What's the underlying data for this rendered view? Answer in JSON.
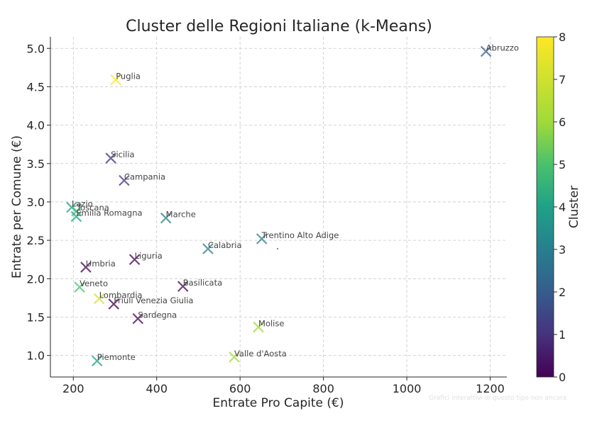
{
  "watermark_text": "Grafici interattivi di questo tipo non ancora",
  "chart_data": {
    "type": "scatter",
    "title": "Cluster delle Regioni Italiane (k-Means)",
    "xlabel": "Entrate Pro Capite (€)",
    "ylabel": "Entrate per Comune (€)",
    "xlim": [
      145,
      1240
    ],
    "ylim": [
      0.72,
      5.15
    ],
    "x_ticks": [
      200,
      400,
      600,
      800,
      1000,
      1200
    ],
    "y_ticks": [
      1.0,
      1.5,
      2.0,
      2.5,
      3.0,
      3.5,
      4.0,
      4.5,
      5.0
    ],
    "y_tick_labels": [
      "1.0",
      "1.5",
      "2.0",
      "2.5",
      "3.0",
      "3.5",
      "4.0",
      "4.5",
      "5.0"
    ],
    "grid": true,
    "marker": "x",
    "colorbar": {
      "label": "Cluster",
      "min": 0,
      "max": 8,
      "ticks": [
        "0",
        "1",
        "2",
        "3",
        "4",
        "5",
        "6",
        "7",
        "8"
      ],
      "colormap": "viridis"
    },
    "points": [
      {
        "label": "Abruzzo",
        "x": 1190,
        "y": 4.96,
        "cluster": 2
      },
      {
        "label": "Puglia",
        "x": 302,
        "y": 4.59,
        "cluster": 8
      },
      {
        "label": "Sicilia",
        "x": 290,
        "y": 3.57,
        "cluster": 1
      },
      {
        "label": "Campania",
        "x": 322,
        "y": 3.28,
        "cluster": 1
      },
      {
        "label": "Lazio",
        "x": 196,
        "y": 2.93,
        "cluster": 4
      },
      {
        "label": "Toscana",
        "x": 208,
        "y": 2.88,
        "cluster": 5
      },
      {
        "label": "Emilia Romagna",
        "x": 207,
        "y": 2.81,
        "cluster": 4
      },
      {
        "label": "Marche",
        "x": 422,
        "y": 2.79,
        "cluster": 3
      },
      {
        "label": "Trentino Alto Adige",
        "x": 652,
        "y": 2.52,
        "cluster": 3
      },
      {
        "label": "Calabria",
        "x": 523,
        "y": 2.39,
        "cluster": 3
      },
      {
        "label": "Liguria",
        "x": 347,
        "y": 2.25,
        "cluster": 0
      },
      {
        "label": "Umbria",
        "x": 230,
        "y": 2.15,
        "cluster": 0
      },
      {
        "label": "Veneto",
        "x": 215,
        "y": 1.89,
        "cluster": 5
      },
      {
        "label": "Basilicata",
        "x": 463,
        "y": 1.9,
        "cluster": 0
      },
      {
        "label": "Lombardia",
        "x": 262,
        "y": 1.74,
        "cluster": 7
      },
      {
        "label": "Friuli Venezia Giulia",
        "x": 297,
        "y": 1.67,
        "cluster": 0
      },
      {
        "label": "Sardegna",
        "x": 355,
        "y": 1.48,
        "cluster": 0
      },
      {
        "label": "Molise",
        "x": 644,
        "y": 1.37,
        "cluster": 6
      },
      {
        "label": "Valle d'Aosta",
        "x": 586,
        "y": 0.98,
        "cluster": 6
      },
      {
        "label": "Piemonte",
        "x": 257,
        "y": 0.93,
        "cluster": 4
      }
    ]
  }
}
